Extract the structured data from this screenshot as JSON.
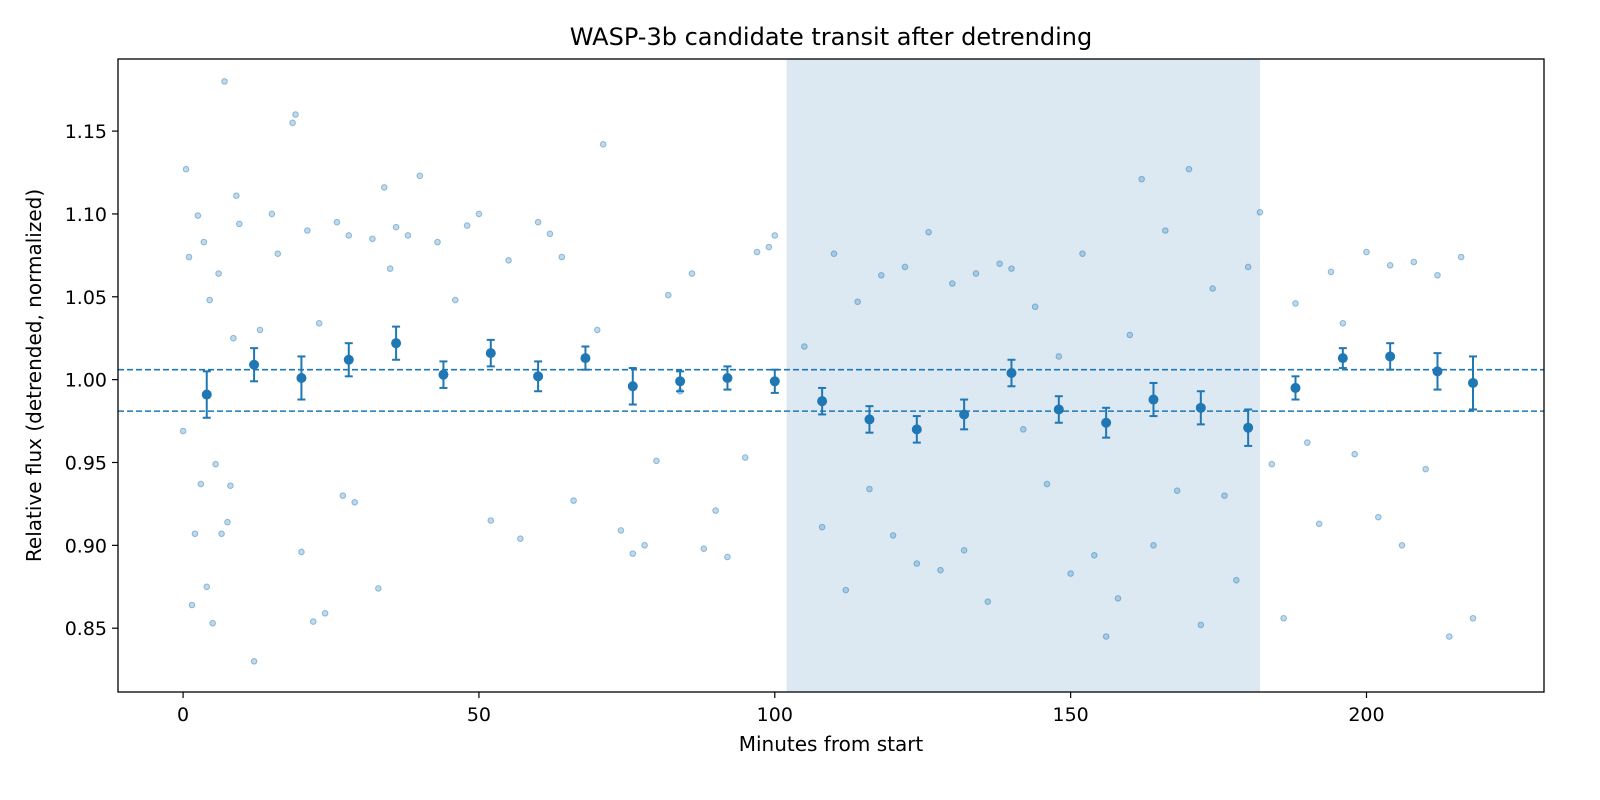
{
  "chart_data": {
    "type": "scatter",
    "title": "WASP-3b candidate transit after detrending",
    "xlabel": "Minutes from start",
    "ylabel": "Relative flux (detrended, normalized)",
    "xlim": [
      -11,
      230
    ],
    "ylim": [
      0.8115,
      1.1935
    ],
    "x_ticks": [
      0,
      50,
      100,
      150,
      200
    ],
    "y_ticks": [
      0.85,
      0.9,
      0.95,
      1.0,
      1.05,
      1.1,
      1.15
    ],
    "x_tick_labels": [
      "0",
      "50",
      "100",
      "150",
      "200"
    ],
    "y_tick_labels": [
      "0.85",
      "0.90",
      "0.95",
      "1.00",
      "1.05",
      "1.10",
      "1.15"
    ],
    "grid": false,
    "transit_window": {
      "x_start": 102,
      "x_end": 182
    },
    "reference_lines": [
      {
        "y": 1.006,
        "style": "dashed"
      },
      {
        "y": 0.981,
        "style": "dashed"
      }
    ],
    "colors": {
      "raw_points": "#1f77b4",
      "binned_points": "#1f77b4",
      "reference_lines": "#1f77b4",
      "transit_window": "#dce9f3"
    },
    "series": [
      {
        "kind": "raw",
        "x": [
          0,
          0.5,
          1,
          1.5,
          2,
          2.5,
          3,
          3.5,
          4,
          4.5,
          5,
          5.5,
          6,
          6.5,
          7,
          7.5,
          8,
          8.5,
          9,
          9.5,
          12,
          13,
          15,
          16,
          18.5,
          19,
          20,
          21,
          22,
          23,
          24,
          26,
          27,
          28,
          29,
          32,
          33,
          34,
          35,
          36,
          38,
          40,
          43,
          46,
          48,
          50,
          52,
          55,
          57,
          60,
          62,
          64,
          66,
          70,
          71,
          74,
          76,
          78,
          80,
          82,
          84,
          86,
          88,
          90,
          92,
          95,
          97,
          99,
          100,
          105,
          108,
          110,
          112,
          114,
          116,
          118,
          120,
          122,
          124,
          126,
          128,
          130,
          132,
          134,
          136,
          138,
          140,
          142,
          144,
          146,
          148,
          150,
          152,
          154,
          156,
          158,
          160,
          162,
          164,
          166,
          168,
          170,
          172,
          174,
          176,
          178,
          180,
          182,
          184,
          186,
          188,
          190,
          192,
          194,
          196,
          198,
          200,
          202,
          204,
          206,
          208,
          210,
          212,
          214,
          216,
          218
        ],
        "y": [
          0.969,
          1.127,
          1.074,
          0.864,
          0.907,
          1.099,
          0.937,
          1.083,
          0.875,
          1.048,
          0.853,
          0.949,
          1.064,
          0.907,
          1.18,
          0.914,
          0.936,
          1.025,
          1.111,
          1.094,
          0.83,
          1.03,
          1.1,
          1.076,
          1.155,
          1.16,
          0.896,
          1.09,
          0.854,
          1.034,
          0.859,
          1.095,
          0.93,
          1.087,
          0.926,
          1.085,
          0.874,
          1.116,
          1.067,
          1.092,
          1.087,
          1.123,
          1.083,
          1.048,
          1.093,
          1.1,
          0.915,
          1.072,
          0.904,
          1.095,
          1.088,
          1.074,
          0.927,
          1.03,
          1.142,
          0.909,
          0.895,
          0.9,
          0.951,
          1.051,
          0.993,
          1.064,
          0.898,
          0.921,
          0.893,
          0.953,
          1.077,
          1.08,
          1.087,
          1.02,
          0.911,
          1.076,
          0.873,
          1.047,
          0.934,
          1.063,
          0.906,
          1.068,
          0.889,
          1.089,
          0.885,
          1.058,
          0.897,
          1.064,
          0.866,
          1.07,
          1.067,
          0.97,
          1.044,
          0.937,
          1.014,
          0.883,
          1.076,
          0.894,
          0.845,
          0.868,
          1.027,
          1.121,
          0.9,
          1.09,
          0.933,
          1.127,
          0.852,
          1.055,
          0.93,
          0.879,
          1.068,
          1.101,
          0.949,
          0.856,
          1.046,
          0.962,
          0.913,
          1.065,
          1.034,
          0.955,
          1.077,
          0.917,
          1.069,
          0.9,
          1.071,
          0.946,
          1.063,
          0.845,
          1.074,
          0.856
        ]
      },
      {
        "kind": "binned",
        "x": [
          4,
          12,
          20,
          28,
          36,
          44,
          52,
          60,
          68,
          76,
          84,
          92,
          100,
          108,
          116,
          124,
          132,
          140,
          148,
          156,
          164,
          172,
          180,
          188,
          196,
          204,
          212,
          218
        ],
        "y": [
          0.991,
          1.009,
          1.001,
          1.012,
          1.022,
          1.003,
          1.016,
          1.002,
          1.013,
          0.996,
          0.999,
          1.001,
          0.999,
          0.987,
          0.976,
          0.97,
          0.979,
          1.004,
          0.982,
          0.974,
          0.988,
          0.983,
          0.971,
          0.995,
          1.013,
          1.014,
          1.005,
          0.998
        ],
        "err": [
          0.014,
          0.01,
          0.013,
          0.01,
          0.01,
          0.008,
          0.008,
          0.009,
          0.007,
          0.011,
          0.006,
          0.007,
          0.007,
          0.008,
          0.008,
          0.008,
          0.009,
          0.008,
          0.008,
          0.009,
          0.01,
          0.01,
          0.011,
          0.007,
          0.006,
          0.008,
          0.011,
          0.016
        ]
      }
    ]
  }
}
